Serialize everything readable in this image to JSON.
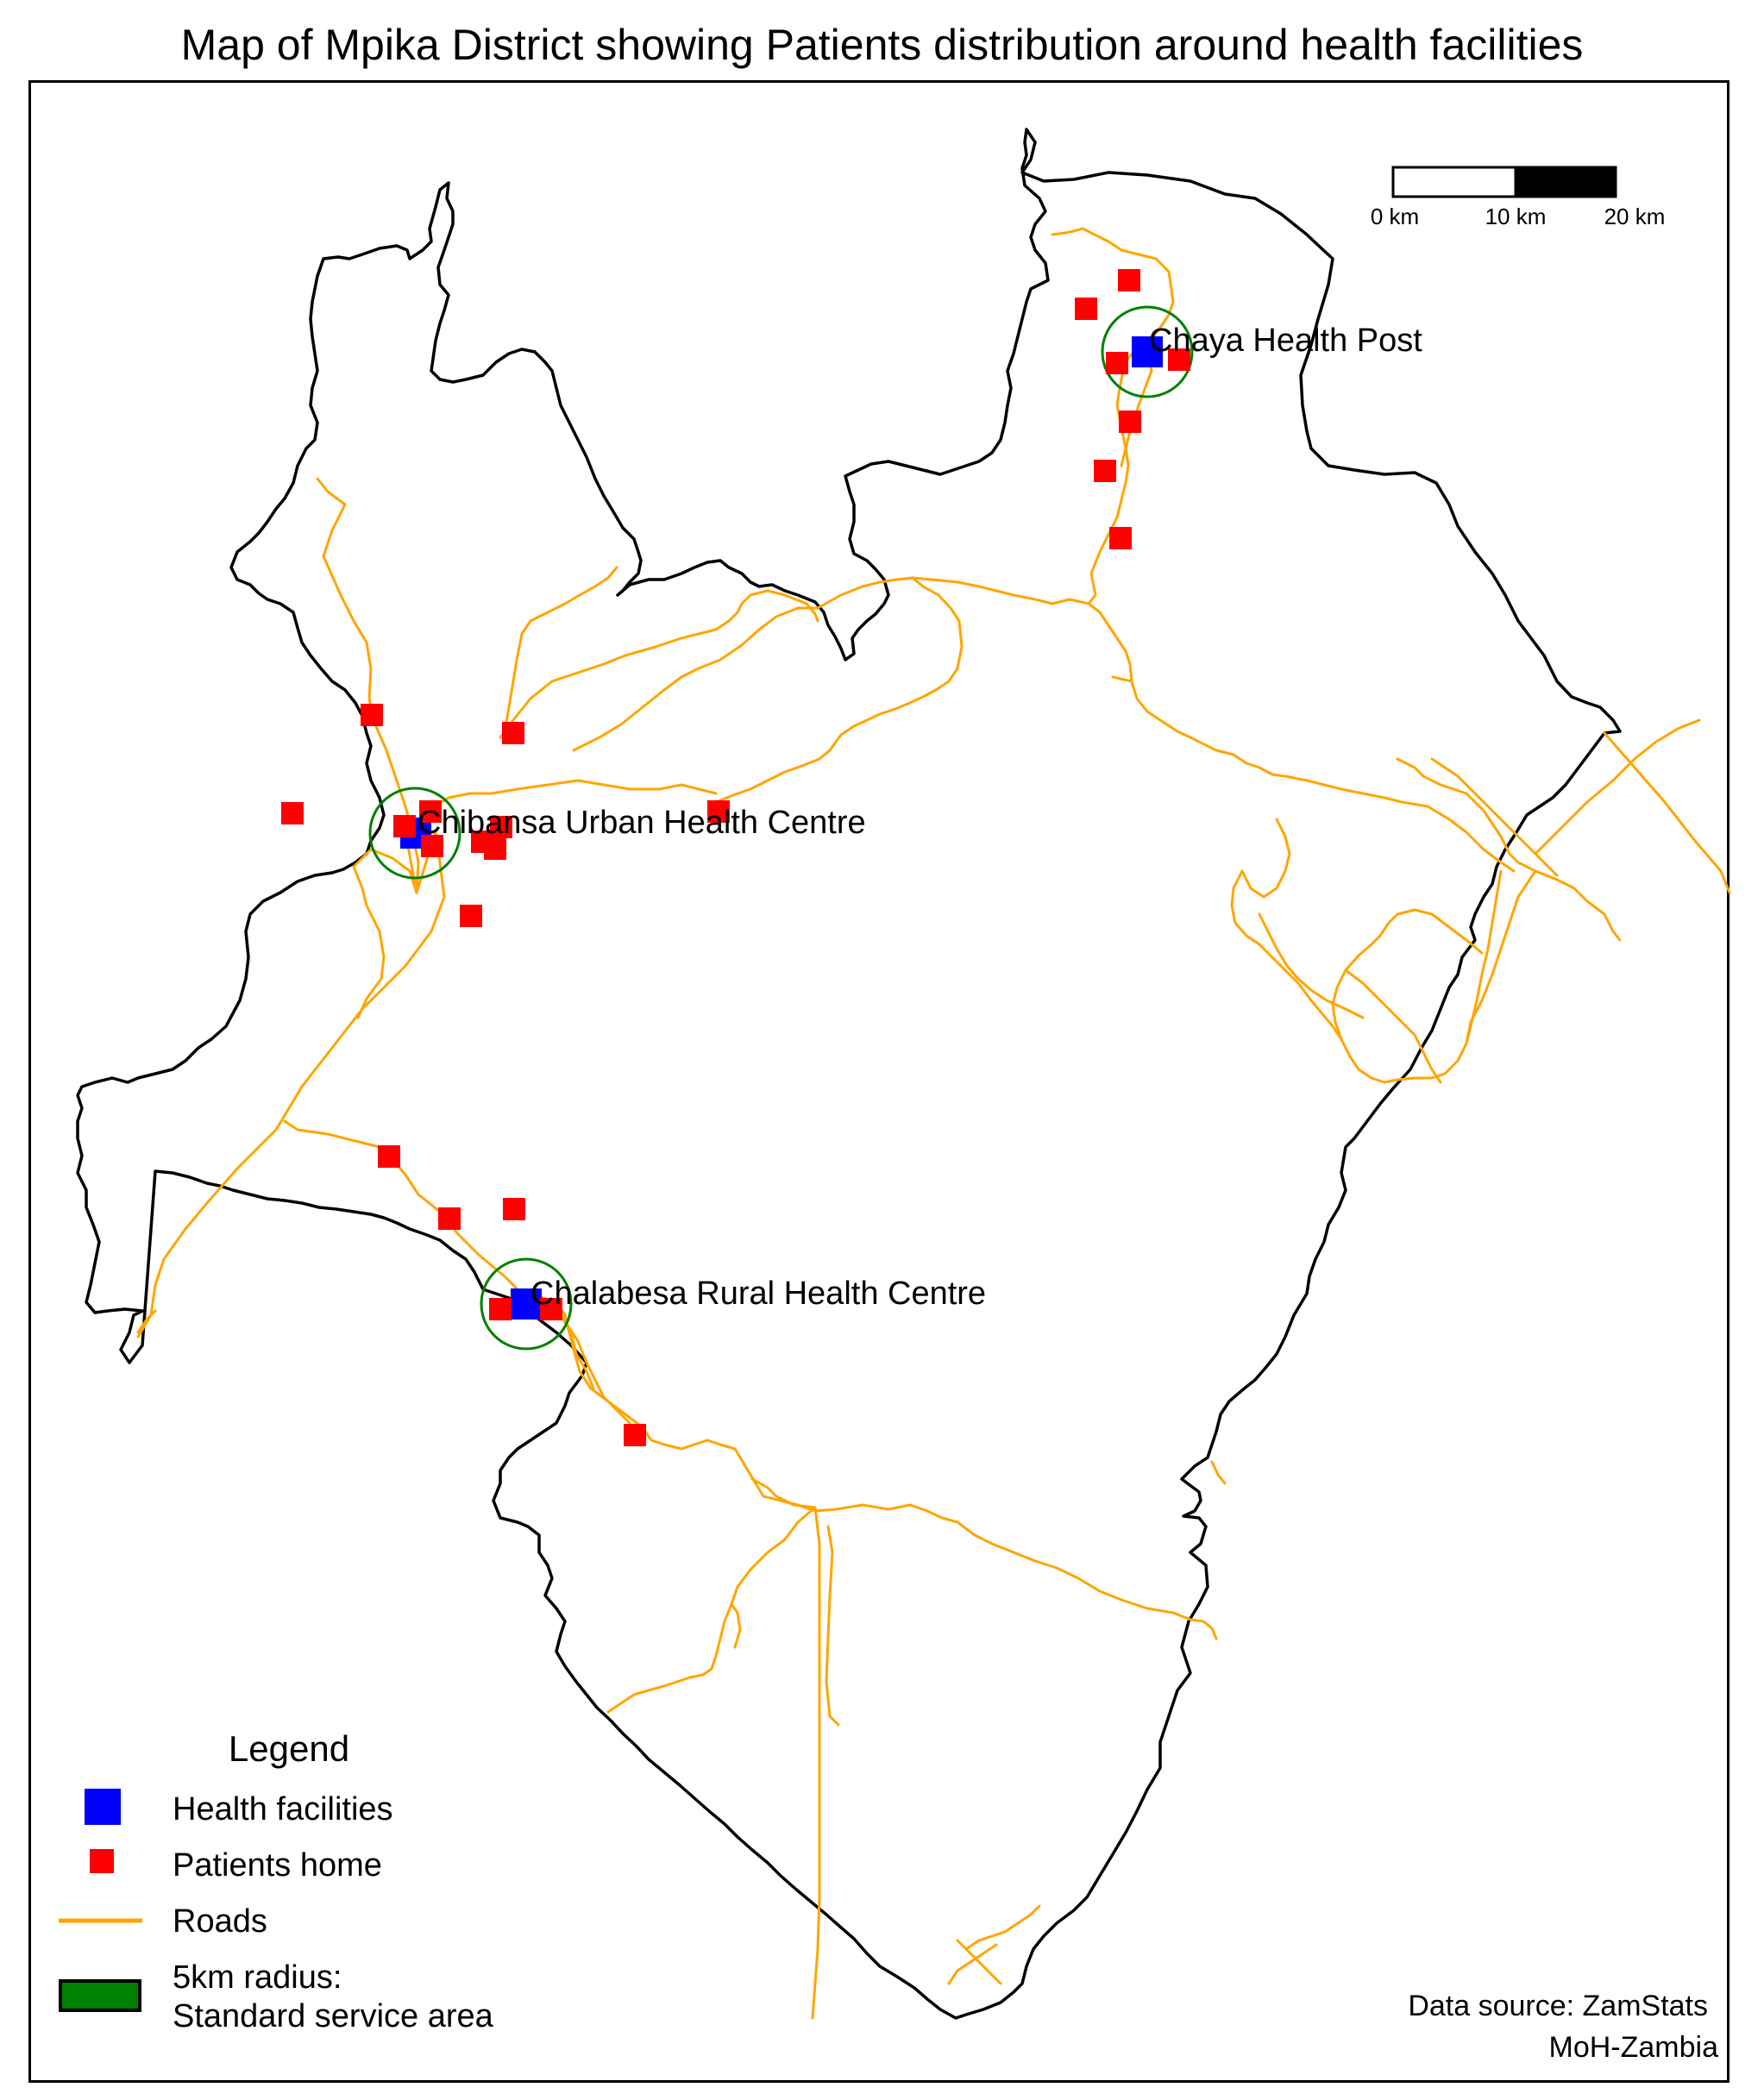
{
  "title": "Map of Mpika District showing Patients distribution around health facilities",
  "colors": {
    "boundary": "#000000",
    "road": "#FFA500",
    "facility": "#0000FF",
    "patient": "#FF0000",
    "radius": "#008000"
  },
  "scale_bar": {
    "labels": [
      "0 km",
      "10 km",
      "20 km"
    ]
  },
  "facilities": [
    {
      "name": "Chaya Health Post"
    },
    {
      "name": "Chibansa Urban Health Centre"
    },
    {
      "name": "Chalabesa Rural Health Centre"
    }
  ],
  "legend": {
    "title": "Legend",
    "items": [
      {
        "label": "Health facilities",
        "symbol": "blue-square"
      },
      {
        "label": "Patients home",
        "symbol": "red-square"
      },
      {
        "label": "Roads",
        "symbol": "orange-line"
      },
      {
        "label": "5km radius:",
        "label2": "Standard service area",
        "symbol": "green-rectangle"
      }
    ]
  },
  "source": {
    "line1": "Data source: ZamStats",
    "line2": "MoH-Zambia"
  }
}
